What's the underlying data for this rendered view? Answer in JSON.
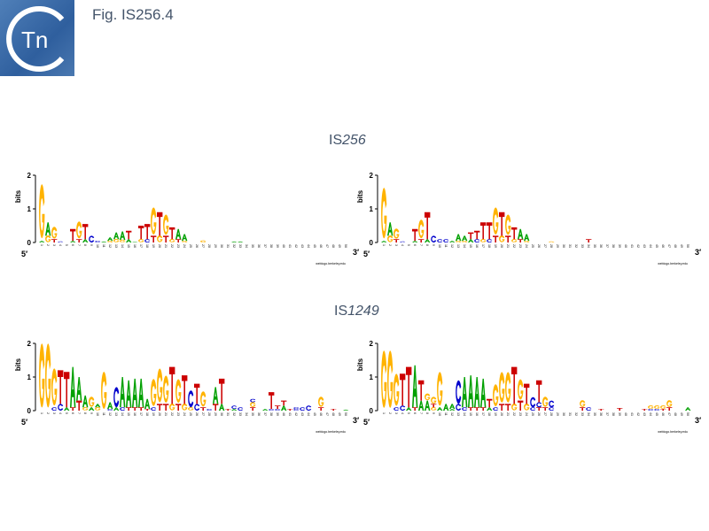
{
  "header": {
    "badge_text": "Tn",
    "figure_label": "Fig. IS256.4"
  },
  "axis": {
    "ylabel": "bits",
    "ticks": [
      "0",
      "1",
      "2"
    ],
    "five_prime": "5′",
    "three_prime": "3′",
    "credit": "weblogo.berkeley.edu"
  },
  "colors": {
    "A": "#00a000",
    "C": "#0000cc",
    "G": "#ffb300",
    "T": "#cc0000",
    "title": "#44546a"
  },
  "sections": [
    {
      "title_prefix": "IS",
      "title_italic": "256"
    },
    {
      "title_prefix": "IS",
      "title_italic": "1249"
    }
  ],
  "logos": [
    {
      "name": "IS256-left",
      "positions": [
        "A.05G1.6",
        "G.2A.4",
        "T.1G.35",
        "C.03",
        "",
        "A.05T.35",
        "T.1G.5",
        "A.1T.45",
        "C.2",
        "C.05",
        "A.03",
        "G.05A.1",
        "G.1A.2",
        "G.08A.25",
        "A.1T.25",
        "A.02",
        "G.1T.4",
        "C.1T.45",
        "T.2G.8",
        "G.2T.7",
        "T.2G.6",
        "G.1T.35",
        "T.1A.3",
        "G.05A.2",
        "",
        "",
        "G.06",
        "",
        "",
        "",
        "",
        "A.03",
        "A.03",
        "",
        "",
        "",
        "",
        "",
        "",
        "",
        "",
        "",
        "",
        "",
        "",
        "",
        "",
        "",
        "",
        ""
      ]
    },
    {
      "name": "IS256-right",
      "positions": [
        "A.05G1.5",
        "G.2A.4",
        "T.1G.3",
        "C.03",
        "",
        "A.05T.35",
        "T.1G.55",
        "A.1T.8",
        "C.2",
        "C.1",
        "C.1",
        "A.05",
        "G.05A.2",
        "G.05A.15",
        "A.1T.2",
        "C.1T.25",
        "G.1T.5",
        "C.1T.5",
        "T.2G.8",
        "G.2T.7",
        "T.2G.6",
        "G.1T.35",
        "T.1A.3",
        "G.05A.2",
        "",
        "",
        "",
        "G.03",
        "",
        "",
        "",
        "",
        "",
        "T.1",
        "",
        "",
        "",
        "",
        "",
        "",
        "",
        "",
        "",
        "",
        "",
        "",
        "",
        "",
        "",
        ""
      ]
    },
    {
      "name": "IS1249-left",
      "positions": [
        "G1.9",
        "G1.9",
        "C.1G1.1",
        "C.2T1",
        "A.1T1.05",
        "T.1A1.2",
        "T.3A.7",
        "G.1A.35",
        "A.1G.3",
        "G.1A.1",
        "G1.1",
        "C.05A.2",
        "A.1C.6",
        "C.1A.9",
        "T.1A.8",
        "T.1A.85",
        "T.1A.85",
        "T.05A.3",
        "C.1G.8",
        "T.2G1",
        "T.2G.8",
        "G.2T1.1",
        "T.2G.7",
        "G.2T.85",
        "G.1C.5",
        "C.2T.6",
        "T.1G.45",
        "C.05",
        "T.2A.5",
        "A.2T.75",
        "T.05",
        "A.05C.1",
        "C.1",
        "",
        "T.1G.15C.1",
        "",
        "A.05",
        "C.05T.5",
        "C.05T.1",
        "A.15T.15",
        "T.05",
        "C.05C.05",
        "C.1",
        "C.15",
        "",
        "T.1G.3",
        "",
        "T.05",
        "",
        "A.03"
      ]
    },
    {
      "name": "IS1249-right",
      "positions": [
        "G1.7",
        "G1.7",
        "C.1G.95",
        "C.15T.95",
        "A.1T1.2",
        "T.1A1.25",
        "A.3T.6",
        "A.3G.2",
        "G.1T.1G.2",
        "A.1G1",
        "A.2",
        "A.05A.15",
        "C.2C.7",
        "C.1A.9",
        "T.1A.95",
        "T.1A.9",
        "T.1A.85",
        "A.1T.25",
        "C.1G.65",
        "T.2G.9",
        "T.2G.9",
        "G.2T1.1",
        "T.3G.6",
        "G.2T.6",
        "C.1C.3",
        "T.1C.15T.65",
        "T.1G.3",
        "C.1C.2",
        "",
        "",
        "",
        "",
        "T.1G.2",
        "C.1",
        "",
        "T.05",
        "",
        "",
        "T.08",
        "",
        "",
        "",
        "T.05",
        "C.05G.1",
        "C.05G.1",
        "T.05G.1",
        "T.1G.2",
        "",
        "",
        "A.1"
      ]
    }
  ]
}
